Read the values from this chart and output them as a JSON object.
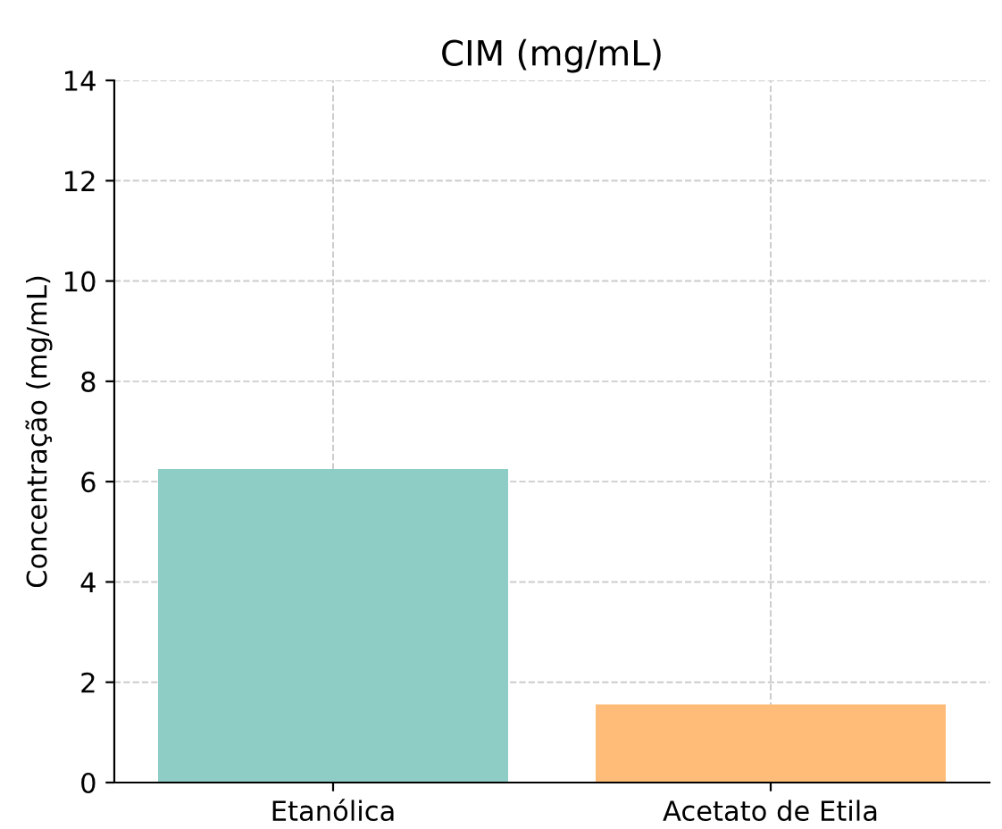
{
  "chart_data": {
    "type": "bar",
    "title": "CIM (mg/mL)",
    "ylabel": "Concentração (mg/mL)",
    "categories": [
      "Etanólica",
      "Acetato de Etila"
    ],
    "values": [
      6.25,
      1.56
    ],
    "colors": [
      "#8ecdc6",
      "#ffbb78"
    ],
    "ylim": [
      0,
      14
    ],
    "yticks": [
      0,
      2,
      4,
      6,
      8,
      10,
      12,
      14
    ],
    "grid": true
  }
}
